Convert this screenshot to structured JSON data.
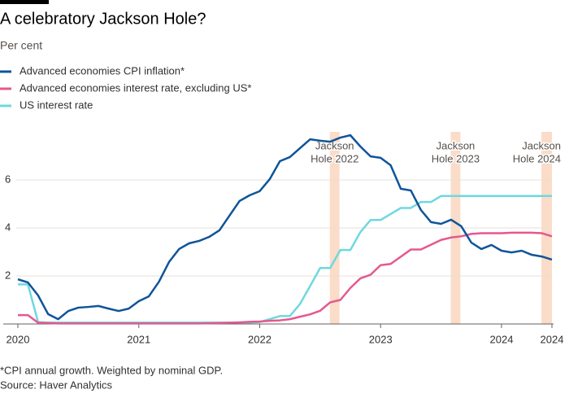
{
  "chart_data": {
    "type": "line",
    "title": "A celebratory Jackson Hole?",
    "subtitle": "Per cent",
    "footnote": "*CPI annual growth. Weighted by nominal GDP.",
    "source": "Source: Haver Analytics",
    "x": [
      2020,
      2020.083,
      2020.167,
      2020.25,
      2020.333,
      2020.417,
      2020.5,
      2020.583,
      2020.667,
      2020.75,
      2020.833,
      2020.917,
      2021,
      2021.083,
      2021.167,
      2021.25,
      2021.333,
      2021.417,
      2021.5,
      2021.583,
      2021.667,
      2021.75,
      2021.833,
      2021.917,
      2022,
      2022.083,
      2022.167,
      2022.25,
      2022.333,
      2022.417,
      2022.5,
      2022.583,
      2022.667,
      2022.75,
      2022.833,
      2022.917,
      2023,
      2023.083,
      2023.167,
      2023.25,
      2023.333,
      2023.417,
      2023.5,
      2023.583,
      2023.667,
      2023.75,
      2023.833,
      2023.917,
      2024,
      2024.083,
      2024.167,
      2024.25,
      2024.333,
      2024.417
    ],
    "series": [
      {
        "name": "Advanced economies CPI inflation*",
        "color": "#0f5499",
        "values": [
          1.86,
          1.73,
          1.19,
          0.41,
          0.2,
          0.54,
          0.68,
          0.71,
          0.75,
          0.64,
          0.54,
          0.64,
          0.95,
          1.15,
          1.76,
          2.58,
          3.12,
          3.36,
          3.46,
          3.63,
          3.9,
          4.51,
          5.12,
          5.36,
          5.53,
          6.03,
          6.78,
          6.95,
          7.32,
          7.69,
          7.63,
          7.59,
          7.76,
          7.86,
          7.39,
          6.98,
          6.92,
          6.61,
          5.63,
          5.56,
          4.75,
          4.24,
          4.17,
          4.34,
          4.07,
          3.39,
          3.12,
          3.29,
          3.05,
          2.98,
          3.05,
          2.88,
          2.81,
          2.68
        ]
      },
      {
        "name": "Advanced economies interest rate, excluding US*",
        "color": "#e5588e",
        "values": [
          0.37,
          0.37,
          0.05,
          0.04,
          0.02,
          0.02,
          0.02,
          0.02,
          0.02,
          0.02,
          0.02,
          0.02,
          0.02,
          0.02,
          0.02,
          0.02,
          0.02,
          0.02,
          0.02,
          0.03,
          0.04,
          0.05,
          0.07,
          0.09,
          0.1,
          0.13,
          0.15,
          0.2,
          0.3,
          0.4,
          0.55,
          0.9,
          1.0,
          1.5,
          1.9,
          2.05,
          2.45,
          2.5,
          2.8,
          3.1,
          3.1,
          3.3,
          3.5,
          3.6,
          3.65,
          3.75,
          3.78,
          3.78,
          3.78,
          3.8,
          3.8,
          3.8,
          3.78,
          3.65
        ]
      },
      {
        "name": "US interest rate",
        "color": "#6fd8e0",
        "values": [
          1.65,
          1.65,
          0.08,
          0.06,
          0.06,
          0.06,
          0.06,
          0.06,
          0.06,
          0.06,
          0.06,
          0.06,
          0.06,
          0.06,
          0.06,
          0.06,
          0.06,
          0.06,
          0.06,
          0.06,
          0.06,
          0.06,
          0.06,
          0.06,
          0.08,
          0.2,
          0.33,
          0.33,
          0.83,
          1.58,
          2.33,
          2.33,
          3.08,
          3.08,
          3.83,
          4.33,
          4.33,
          4.58,
          4.83,
          4.83,
          5.08,
          5.08,
          5.33,
          5.33,
          5.33,
          5.33,
          5.33,
          5.33,
          5.33,
          5.33,
          5.33,
          5.33,
          5.33,
          5.33
        ]
      }
    ],
    "highlights": [
      {
        "label": [
          "Jackson",
          "Hole 2022"
        ],
        "x": [
          2022.58,
          2022.66
        ]
      },
      {
        "label": [
          "Jackson",
          "Hole 2023"
        ],
        "x": [
          2023.58,
          2023.66
        ]
      },
      {
        "label": [
          "Jackson",
          "Hole 2024"
        ],
        "x": [
          2024.33,
          2024.417
        ]
      }
    ],
    "highlight_color": "#fbdcc8",
    "xlim": [
      2020,
      2024.417
    ],
    "xticks": [
      2020,
      2021,
      2022,
      2023,
      2024,
      {
        "value": 2024.417,
        "label": "2024"
      }
    ],
    "ylim": [
      0,
      8
    ],
    "yticks": [
      2,
      4,
      6
    ],
    "grid": true
  }
}
